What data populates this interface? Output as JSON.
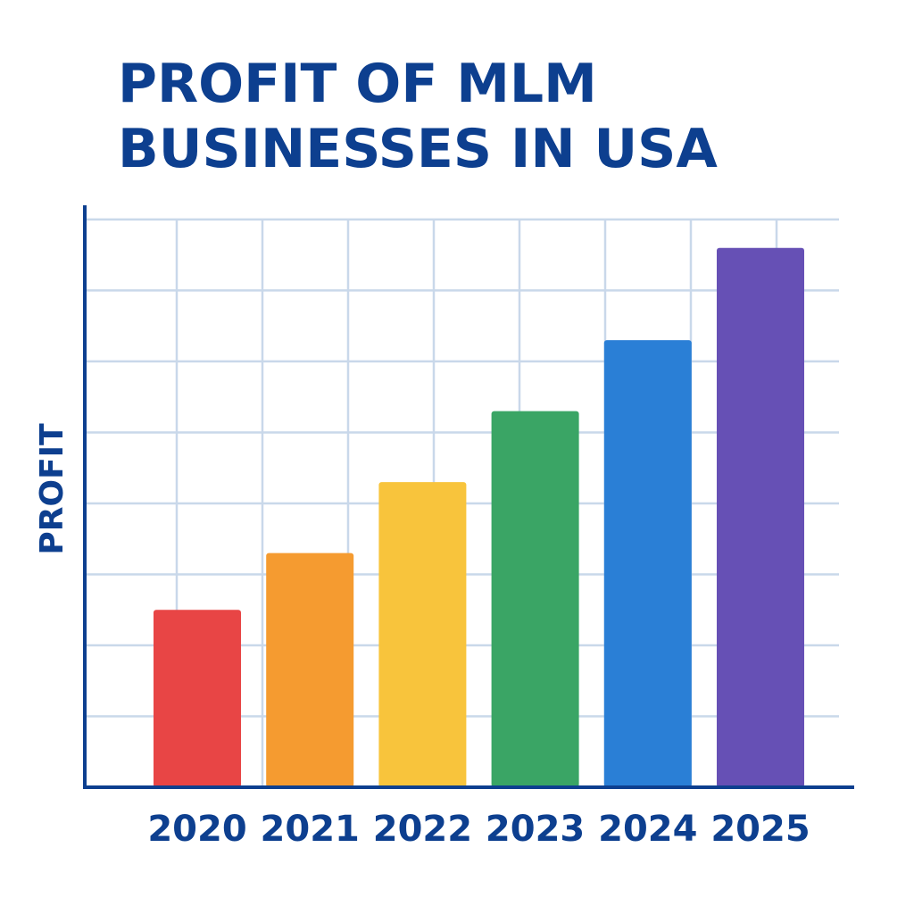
{
  "chart_data": {
    "type": "bar",
    "title_lines": [
      "PROFIT OF MLM",
      "BUSINESSES IN USA"
    ],
    "xlabel": "",
    "ylabel": "PROFIT",
    "categories": [
      "2020",
      "2021",
      "2022",
      "2023",
      "2024",
      "2025"
    ],
    "values": [
      2.5,
      3.3,
      4.3,
      5.3,
      6.3,
      7.6
    ],
    "ylim": [
      0,
      8.2
    ],
    "y_gridlines": [
      1,
      2,
      3,
      4,
      5,
      6,
      7,
      8
    ],
    "grid": true,
    "colors": [
      "#e84545",
      "#f59b30",
      "#f8c43c",
      "#3aa565",
      "#2a7fd6",
      "#6650b5"
    ]
  }
}
